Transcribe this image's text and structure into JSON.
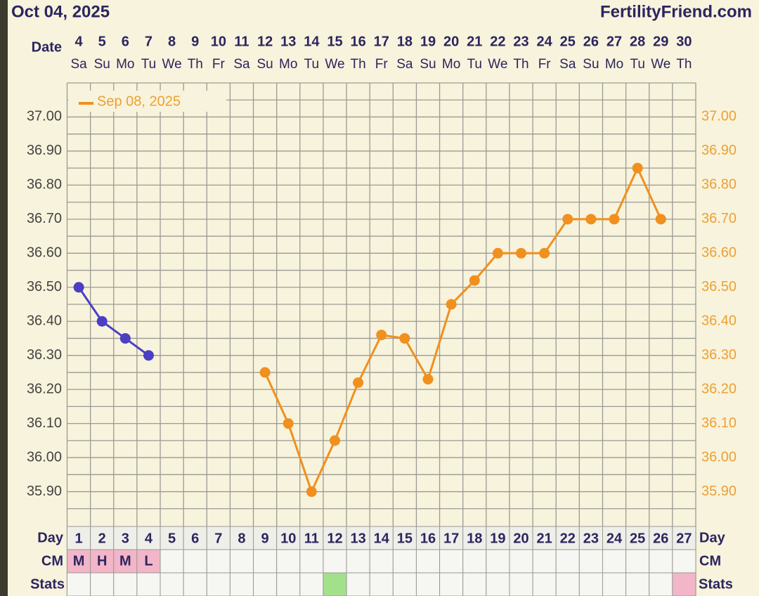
{
  "chart_data": {
    "type": "line",
    "title": "Oct 04, 2025",
    "brand": "FertilityFriend.com",
    "date_label": "Date",
    "categories": [
      "4",
      "5",
      "6",
      "7",
      "8",
      "9",
      "10",
      "11",
      "12",
      "13",
      "14",
      "15",
      "16",
      "17",
      "18",
      "19",
      "20",
      "21",
      "22",
      "23",
      "24",
      "25",
      "26",
      "27",
      "28",
      "29",
      "30"
    ],
    "weekdays": [
      "Sa",
      "Su",
      "Mo",
      "Tu",
      "We",
      "Th",
      "Fr",
      "Sa",
      "Su",
      "Mo",
      "Tu",
      "We",
      "Th",
      "Fr",
      "Sa",
      "Su",
      "Mo",
      "Tu",
      "We",
      "Th",
      "Fr",
      "Sa",
      "Su",
      "Mo",
      "Tu",
      "We",
      "Th"
    ],
    "series": [
      {
        "color": "#4b3fc4",
        "values": [
          36.5,
          36.4,
          36.35,
          36.3,
          null,
          null,
          null,
          null,
          null,
          null,
          null,
          null,
          null,
          null,
          null,
          null,
          null,
          null,
          null,
          null,
          null,
          null,
          null,
          null,
          null,
          null,
          null
        ]
      },
      {
        "name": "Sep 08, 2025",
        "color": "#f0901e",
        "values": [
          null,
          null,
          null,
          null,
          null,
          null,
          null,
          null,
          36.25,
          36.1,
          35.9,
          36.05,
          36.22,
          36.36,
          36.35,
          36.23,
          36.45,
          36.52,
          36.6,
          36.6,
          36.6,
          36.7,
          36.7,
          36.7,
          36.85,
          36.7,
          null
        ]
      }
    ],
    "ylim": [
      35.8,
      37.1
    ],
    "yticks": [
      {
        "value": 35.9,
        "label": "35.90"
      },
      {
        "value": 36.0,
        "label": "36.00"
      },
      {
        "value": 36.1,
        "label": "36.10"
      },
      {
        "value": 36.2,
        "label": "36.20"
      },
      {
        "value": 36.3,
        "label": "36.30"
      },
      {
        "value": 36.4,
        "label": "36.40"
      },
      {
        "value": 36.5,
        "label": "36.50"
      },
      {
        "value": 36.6,
        "label": "36.60"
      },
      {
        "value": 36.7,
        "label": "36.70"
      },
      {
        "value": 36.8,
        "label": "36.80"
      },
      {
        "value": 36.9,
        "label": "36.90"
      },
      {
        "value": 37.0,
        "label": "37.00"
      }
    ],
    "grid": true,
    "legend": "top-left",
    "day_label": "Day",
    "days": [
      "1",
      "2",
      "3",
      "4",
      "5",
      "6",
      "7",
      "8",
      "9",
      "10",
      "11",
      "12",
      "13",
      "14",
      "15",
      "16",
      "17",
      "18",
      "19",
      "20",
      "21",
      "22",
      "23",
      "24",
      "25",
      "26",
      "27"
    ],
    "cm_label": "CM",
    "cm": [
      "M",
      "H",
      "M",
      "L",
      null,
      null,
      null,
      null,
      null,
      null,
      null,
      null,
      null,
      null,
      null,
      null,
      null,
      null,
      null,
      null,
      null,
      null,
      null,
      null,
      null,
      null,
      null
    ],
    "cm_color": "#f2b6c8",
    "stats_label": "Stats",
    "stats_colors": [
      null,
      null,
      null,
      null,
      null,
      null,
      null,
      null,
      null,
      null,
      null,
      "#a3e08a",
      null,
      null,
      null,
      null,
      null,
      null,
      null,
      null,
      null,
      null,
      null,
      null,
      null,
      null,
      "#f2b6c8"
    ]
  }
}
